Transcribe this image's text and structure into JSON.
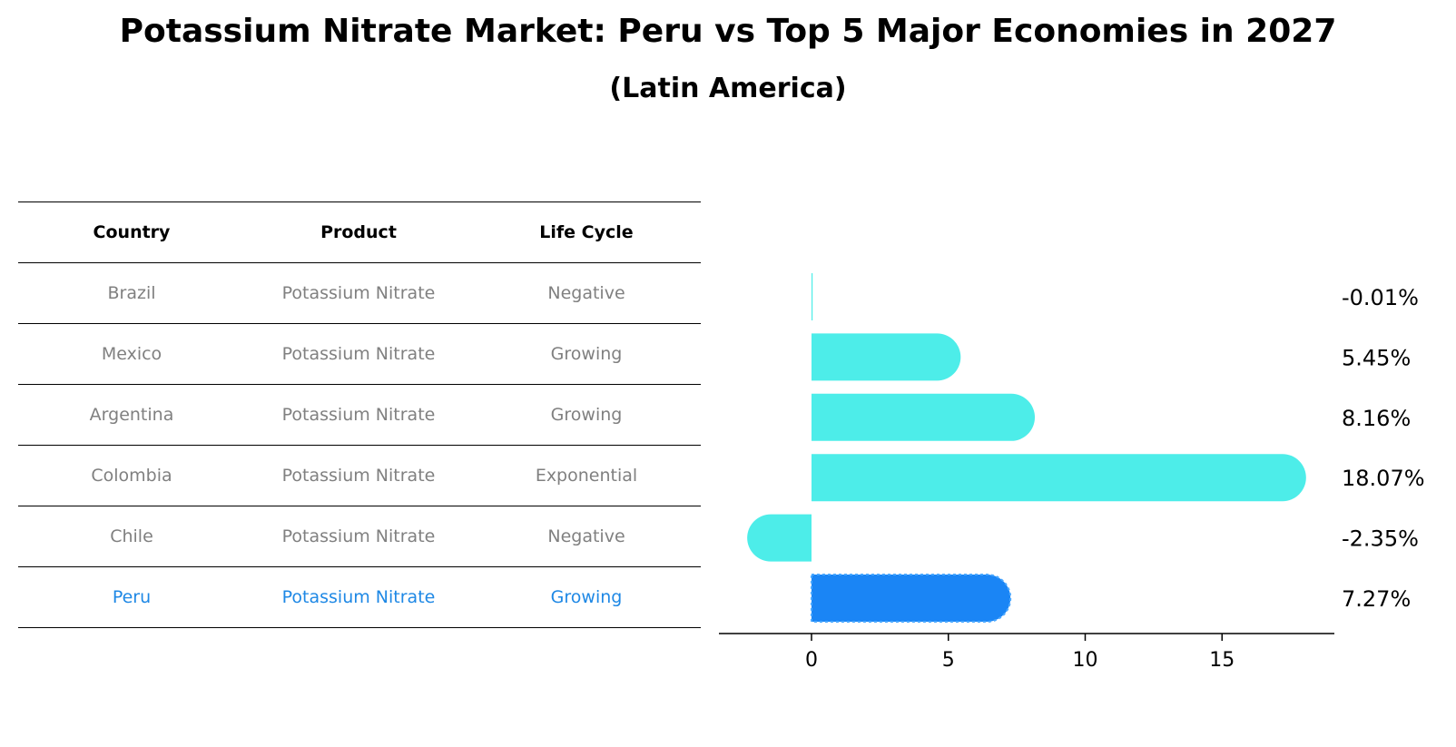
{
  "title": "Potassium Nitrate Market: Peru vs Top 5 Major Economies in 2027",
  "subtitle": "(Latin America)",
  "table": {
    "headers": [
      "Country",
      "Product",
      "Life Cycle"
    ],
    "rows": [
      [
        "Brazil",
        "Potassium Nitrate",
        "Negative"
      ],
      [
        "Mexico",
        "Potassium Nitrate",
        "Growing"
      ],
      [
        "Argentina",
        "Potassium Nitrate",
        "Growing"
      ],
      [
        "Colombia",
        "Potassium Nitrate",
        "Exponential"
      ],
      [
        "Chile",
        "Potassium Nitrate",
        "Negative"
      ],
      [
        "Peru",
        "Potassium Nitrate",
        "Growing"
      ]
    ]
  },
  "chart_data": {
    "type": "bar",
    "orientation": "horizontal",
    "title": "Potassium Nitrate Market: Peru vs Top 5 Major Economies in 2027",
    "categories": [
      "Brazil",
      "Mexico",
      "Argentina",
      "Colombia",
      "Chile",
      "Peru"
    ],
    "values": [
      -0.01,
      5.45,
      8.16,
      18.07,
      -2.35,
      7.27
    ],
    "value_labels": [
      "-0.01%",
      "5.45%",
      "8.16%",
      "18.07%",
      "-2.35%",
      "7.27%"
    ],
    "highlight": "Peru",
    "xticks": [
      0,
      5,
      10,
      15
    ],
    "xlim": [
      -3.45,
      19.1
    ],
    "xlabel": "",
    "ylabel": "",
    "colors": {
      "default": "#4dede9",
      "highlight": "#1a85f5"
    }
  }
}
